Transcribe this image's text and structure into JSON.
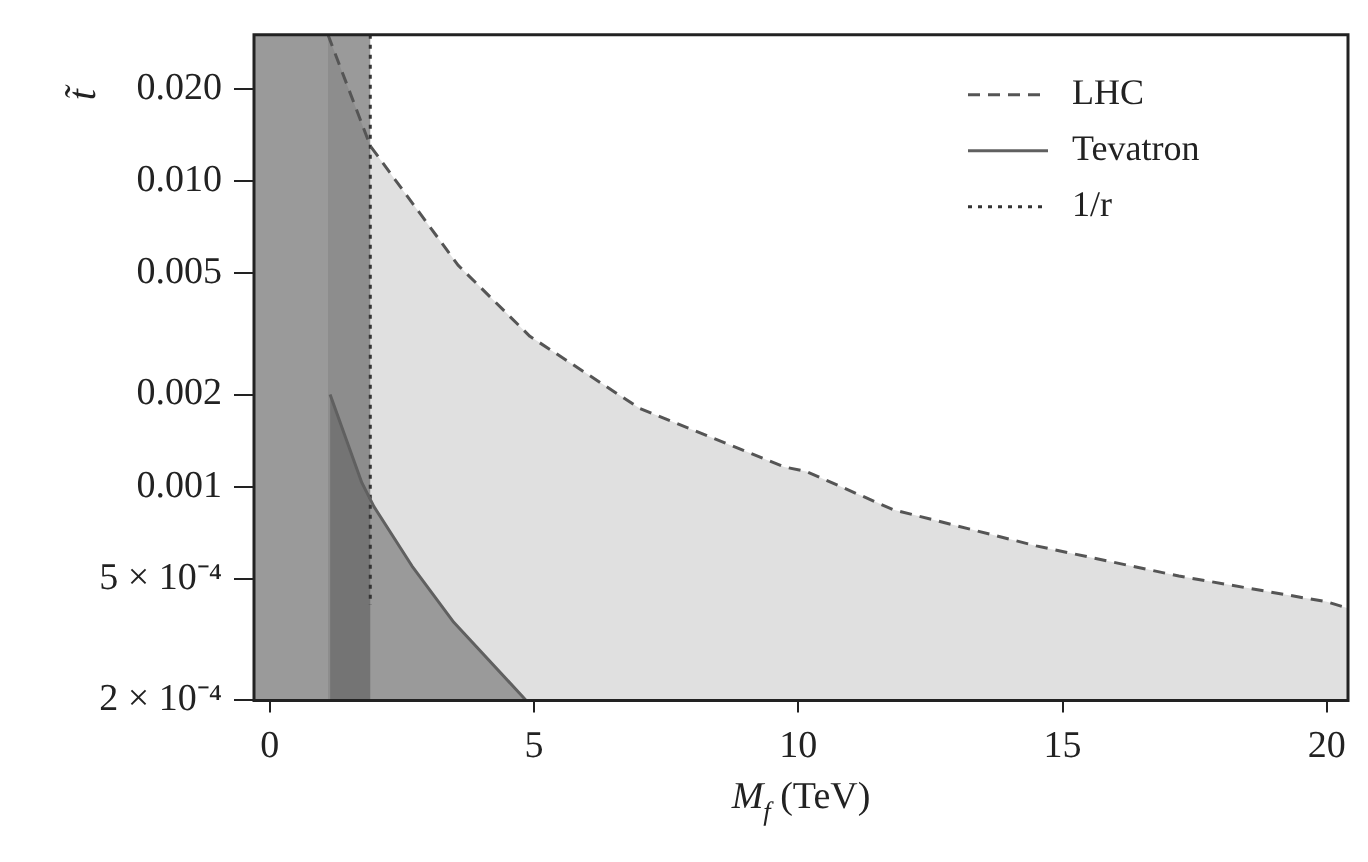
{
  "chart_data": {
    "type": "line",
    "xlabel": "M$_{f}$ (TeV)",
    "ylabel": "t̃",
    "log": "y",
    "grid": false,
    "legend": "top right",
    "xlim": [
      -0.3,
      20.4
    ],
    "xticks": [
      0,
      5,
      10,
      15,
      20
    ],
    "ylim": [
      0.0002,
      0.03
    ],
    "yticks": [
      {
        "value": 0.02,
        "label": "0.020"
      },
      {
        "value": 0.01,
        "label": "0.010"
      },
      {
        "value": 0.005,
        "label": "0.005"
      },
      {
        "value": 0.002,
        "label": "0.002"
      },
      {
        "value": 0.001,
        "label": "0.001"
      },
      {
        "value": 0.0005,
        "label": "5 × 10⁻⁴"
      },
      {
        "value": 0.0002,
        "label": "2 × 10⁻⁴"
      }
    ],
    "bands": [
      {
        "axis": "x",
        "from": -0.3,
        "to": 1.9,
        "color": "#9a9a9a"
      }
    ],
    "series": [
      {
        "name": "LHC",
        "type": "area",
        "color": "#555555",
        "line_style": "dashed",
        "x": [
          1.1,
          1.9,
          3.56,
          4.92,
          7.0,
          9.73,
          10.15,
          11.8,
          14.5,
          17.2,
          20.0,
          20.4
        ],
        "values": [
          0.03,
          0.013,
          0.0053,
          0.0031,
          0.0018,
          0.00116,
          0.00112,
          0.00084,
          0.00064,
          0.00051,
          0.00042,
          0.0004
        ]
      },
      {
        "name": "Tevatron",
        "type": "area",
        "color": "#606060",
        "line_style": "solid",
        "x": [
          1.14,
          1.74,
          1.97,
          2.69,
          3.48,
          4.85
        ],
        "values": [
          0.002,
          0.00103,
          0.00086,
          0.00055,
          0.00036,
          0.0002
        ]
      },
      {
        "name": "1/r",
        "type": "line",
        "color": "#333333",
        "line_style": "dotted",
        "x": [
          1.9,
          1.9
        ],
        "values": [
          0.03,
          0.00041
        ]
      }
    ]
  }
}
